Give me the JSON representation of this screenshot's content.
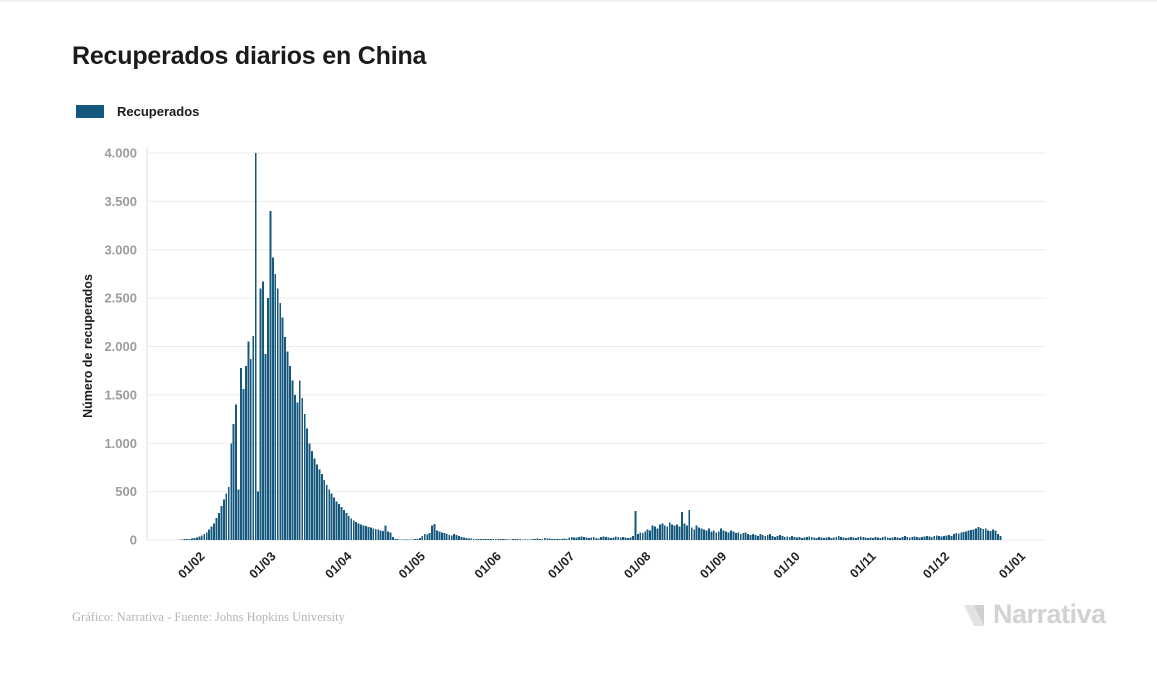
{
  "page": {
    "title": "Recuperados diarios en China"
  },
  "legend": {
    "label": "Recuperados"
  },
  "footer": {
    "credit": "Gráfico: Narrativa - Fuente: Johns Hopkins University"
  },
  "logo": {
    "text": "Narrativa",
    "icon": "narrativa-n-mark"
  },
  "chart_data": {
    "type": "bar",
    "title": "Recuperados diarios en China",
    "series_name": "Recuperados",
    "color": "#15587d",
    "ylabel": "Número de recuperados",
    "ylim": [
      0,
      4000
    ],
    "grid": "horizontal",
    "legend_position": "top-left",
    "y_ticks": [
      {
        "value": 0,
        "label": "0"
      },
      {
        "value": 500,
        "label": "500"
      },
      {
        "value": 1000,
        "label": "1.000"
      },
      {
        "value": 1500,
        "label": "1.500"
      },
      {
        "value": 2000,
        "label": "2.000"
      },
      {
        "value": 2500,
        "label": "2.500"
      },
      {
        "value": 3000,
        "label": "3.000"
      },
      {
        "value": 3500,
        "label": "3.500"
      },
      {
        "value": 4000,
        "label": "4.000"
      }
    ],
    "x_ticks": [
      {
        "label": "01/02",
        "day_offset": 21
      },
      {
        "label": "01/03",
        "day_offset": 50
      },
      {
        "label": "01/04",
        "day_offset": 81
      },
      {
        "label": "01/05",
        "day_offset": 111
      },
      {
        "label": "01/06",
        "day_offset": 142
      },
      {
        "label": "01/07",
        "day_offset": 172
      },
      {
        "label": "01/08",
        "day_offset": 203
      },
      {
        "label": "01/09",
        "day_offset": 234
      },
      {
        "label": "01/10",
        "day_offset": 264
      },
      {
        "label": "01/11",
        "day_offset": 295
      },
      {
        "label": "01/12",
        "day_offset": 325
      },
      {
        "label": "01/01",
        "day_offset": 356
      }
    ],
    "x_unit": "day",
    "x_domain_days": 367,
    "data_start_day_offset": 11,
    "values": [
      0,
      2,
      4,
      6,
      8,
      10,
      12,
      15,
      20,
      25,
      35,
      45,
      60,
      80,
      110,
      140,
      170,
      230,
      280,
      350,
      420,
      480,
      550,
      1000,
      1200,
      1400,
      520,
      1780,
      1560,
      1800,
      2050,
      1870,
      2110,
      4000,
      500,
      2600,
      2670,
      1920,
      2500,
      3400,
      2920,
      2750,
      2600,
      2450,
      2300,
      2100,
      1950,
      1800,
      1650,
      1500,
      1420,
      1650,
      1470,
      1300,
      1150,
      1000,
      920,
      840,
      780,
      730,
      680,
      620,
      570,
      520,
      480,
      440,
      400,
      370,
      340,
      310,
      280,
      250,
      220,
      200,
      185,
      170,
      160,
      150,
      145,
      135,
      130,
      120,
      115,
      110,
      100,
      95,
      150,
      90,
      80,
      30,
      10,
      8,
      6,
      5,
      5,
      4,
      4,
      5,
      8,
      12,
      20,
      40,
      60,
      55,
      70,
      150,
      165,
      100,
      90,
      80,
      70,
      60,
      50,
      45,
      60,
      50,
      40,
      30,
      25,
      22,
      18,
      15,
      12,
      10,
      10,
      8,
      8,
      10,
      12,
      10,
      8,
      8,
      10,
      12,
      10,
      8,
      6,
      5,
      8,
      10,
      12,
      8,
      6,
      5,
      4,
      6,
      8,
      10,
      15,
      12,
      10,
      20,
      18,
      15,
      12,
      10,
      8,
      10,
      12,
      15,
      10,
      25,
      30,
      28,
      25,
      30,
      35,
      30,
      25,
      20,
      25,
      30,
      20,
      15,
      30,
      35,
      30,
      25,
      20,
      25,
      35,
      30,
      25,
      30,
      25,
      20,
      25,
      40,
      300,
      60,
      75,
      70,
      90,
      110,
      100,
      150,
      140,
      120,
      160,
      170,
      150,
      140,
      180,
      160,
      150,
      160,
      140,
      290,
      170,
      150,
      310,
      130,
      110,
      150,
      130,
      120,
      110,
      100,
      120,
      90,
      100,
      80,
      90,
      120,
      100,
      90,
      80,
      100,
      90,
      70,
      80,
      60,
      70,
      80,
      60,
      50,
      60,
      50,
      40,
      60,
      50,
      40,
      50,
      60,
      40,
      30,
      40,
      50,
      40,
      30,
      35,
      30,
      40,
      30,
      25,
      30,
      20,
      25,
      30,
      35,
      30,
      25,
      20,
      30,
      25,
      20,
      25,
      30,
      20,
      25,
      30,
      40,
      30,
      25,
      20,
      25,
      30,
      25,
      20,
      30,
      35,
      30,
      25,
      20,
      25,
      20,
      30,
      25,
      20,
      30,
      35,
      25,
      20,
      25,
      30,
      25,
      20,
      30,
      40,
      30,
      25,
      30,
      35,
      30,
      25,
      30,
      35,
      40,
      35,
      30,
      40,
      45,
      40,
      35,
      40,
      45,
      50,
      40,
      60,
      70,
      65,
      75,
      85,
      90,
      100,
      105,
      110,
      120,
      135,
      125,
      115,
      120,
      100,
      95,
      110,
      100,
      60,
      40
    ]
  }
}
